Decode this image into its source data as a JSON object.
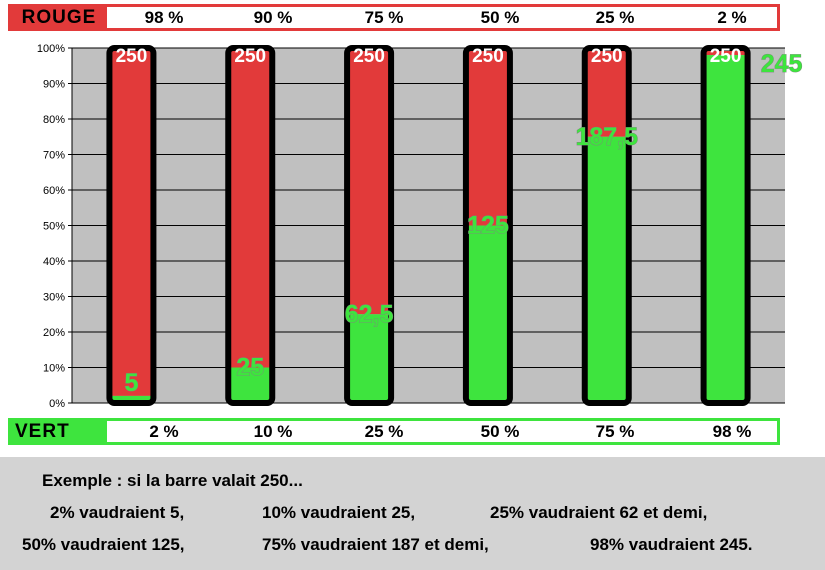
{
  "rouge": {
    "label": "ROUGE",
    "percents": [
      "98 %",
      "90 %",
      "75 %",
      "50 %",
      "25 %",
      "2 %"
    ]
  },
  "vert": {
    "label": "VERT",
    "percents": [
      "2 %",
      "10 %",
      "25 %",
      "50 %",
      "75 %",
      "98 %"
    ]
  },
  "colors": {
    "red": "#e23a3a",
    "green": "#3ee43e",
    "plot_background": "#c0c0c0",
    "bar_outline": "#000000"
  },
  "chart_data": {
    "type": "bar",
    "stacked": true,
    "categories": [
      "",
      "",
      "",
      "",
      "",
      ""
    ],
    "series": [
      {
        "values": [
          2,
          10,
          25,
          50,
          75,
          98
        ],
        "color": "#3ee43e"
      },
      {
        "values": [
          98,
          90,
          75,
          50,
          25,
          2
        ],
        "color": "#e23a3a"
      }
    ],
    "ylim": [
      0,
      100
    ],
    "y_ticks": [
      "0%",
      "10%",
      "20%",
      "30%",
      "40%",
      "50%",
      "60%",
      "70%",
      "80%",
      "90%",
      "100%"
    ],
    "grid": true,
    "top_labels": [
      "250",
      "250",
      "250",
      "250",
      "250",
      "250"
    ],
    "green_labels": [
      "5",
      "25",
      "62,5",
      "125",
      "187,5",
      "245"
    ]
  },
  "note": {
    "line1": "Exemple : si la barre valait 250...",
    "line2": [
      "2% vaudraient 5,",
      "10% vaudraient 25,",
      "25% vaudraient 62 et demi,"
    ],
    "line3": [
      "50% vaudraient 125,",
      "75% vaudraient 187 et demi,",
      "98% vaudraient 245."
    ]
  }
}
